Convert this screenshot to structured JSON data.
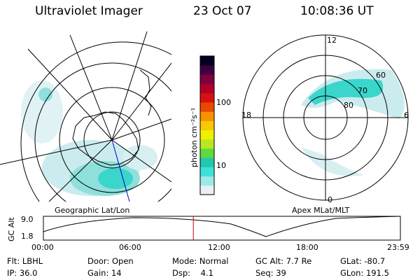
{
  "header": {
    "title": "Ultraviolet Imager",
    "date": "23 Oct 07",
    "time": "10:08:36 UT"
  },
  "colorbar": {
    "unit_label": "photon cm⁻²s⁻¹",
    "ticks": [
      "100",
      "10"
    ],
    "colors": [
      "#e8f0f2",
      "#9fe8e8",
      "#40e0d8",
      "#20c8b0",
      "#60d840",
      "#b8e820",
      "#f0f000",
      "#f8c800",
      "#f89000",
      "#e84800",
      "#d81010",
      "#b00028",
      "#800040",
      "#400040",
      "#000020"
    ]
  },
  "left_map": {
    "caption": "Geographic Lat/Lon",
    "colors": {
      "aurora": "#3ad6cc",
      "aurora_light": "#cbecef",
      "grid": "#000000",
      "meridian": "#0000cc"
    }
  },
  "right_map": {
    "caption": "Apex MLat/MLT",
    "mlt_labels": {
      "top": "12",
      "right": "6",
      "bottom": "0",
      "left": "18"
    },
    "lat_labels": [
      "60",
      "70",
      "80"
    ]
  },
  "altitude_plot": {
    "ylabel": "GC Alt",
    "yticks": [
      "9.0",
      "1.8"
    ],
    "xticks": [
      "00:00",
      "06:00",
      "12:00",
      "18:00",
      "23:59"
    ],
    "marker_time_fraction": 0.42,
    "marker_color": "#cc0000"
  },
  "footer": {
    "row1": [
      {
        "label": "Flt:",
        "value": "LBHL"
      },
      {
        "label": "Door:",
        "value": "Open"
      },
      {
        "label": "Mode:",
        "value": "Normal"
      },
      {
        "label": "GC Alt:",
        "value": "7.7 Re"
      },
      {
        "label": "GLat:",
        "value": "-80.7"
      }
    ],
    "row2": [
      {
        "label": "IP:",
        "value": "36.0"
      },
      {
        "label": "Gain:",
        "value": "14"
      },
      {
        "label": "Dsp:",
        "value": "4.1"
      },
      {
        "label": "Seq:",
        "value": "39"
      },
      {
        "label": "GLon:",
        "value": "191.5"
      }
    ]
  }
}
